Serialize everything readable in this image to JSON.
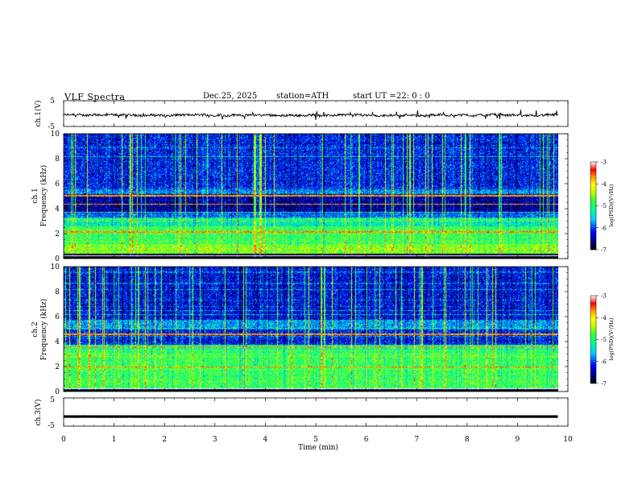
{
  "header": {
    "title": "VLF Spectra",
    "date": "Dec.25, 2025",
    "station": "station=ATH",
    "start_label": "start UT =",
    "start_time": "22: 0 : 0"
  },
  "chart_data": [
    {
      "type": "line",
      "panel": "ch1-waveform",
      "ylabel": "ch.1(V)",
      "ylim": [
        -5,
        5
      ],
      "y_ticks": [
        "5",
        "-5"
      ],
      "xlim": [
        0,
        10
      ],
      "data_extent_min": [
        0,
        9.8
      ],
      "baseline_v": -0.6,
      "description_values": {
        "typical_range_v": [
          -1.3,
          0.5
        ],
        "spike_min_v": -2.2
      }
    },
    {
      "type": "heatmap",
      "panel": "ch1-spectrogram",
      "ylabel": "ch.1\nFrequency (kHz)",
      "ylim_khz": [
        0,
        10
      ],
      "y_ticks": [
        "0",
        "2",
        "4",
        "6",
        "8",
        "10"
      ],
      "xlim_min": [
        0,
        10
      ],
      "data_extent_min": [
        0,
        9.8
      ],
      "colorbar": {
        "label": "log(PSD)(V²/Hz)",
        "range": [
          -7,
          -3
        ],
        "ticks": [
          "-3",
          "-4",
          "-5",
          "-6",
          "-7"
        ]
      },
      "typical_log_psd_by_band_khz": [
        {
          "band": [
            0.0,
            0.4
          ],
          "log_psd": -7
        },
        {
          "band": [
            0.4,
            1.2
          ],
          "log_psd": -4.6
        },
        {
          "band": [
            1.2,
            2.6
          ],
          "log_psd": -4.9
        },
        {
          "band": [
            2.6,
            3.3
          ],
          "log_psd": -5.3
        },
        {
          "band": [
            3.3,
            3.8
          ],
          "log_psd": -5.9
        },
        {
          "band": [
            3.8,
            5.2
          ],
          "log_psd": -6.5
        },
        {
          "band": [
            5.2,
            5.6
          ],
          "log_psd": -5.8
        },
        {
          "band": [
            5.6,
            10.0
          ],
          "log_psd": -6.2
        }
      ],
      "tones_khz": [
        2.15,
        4.4,
        5.05
      ]
    },
    {
      "type": "heatmap",
      "panel": "ch2-spectrogram",
      "ylabel": "ch.2\nFrequency (kHz)",
      "ylim_khz": [
        0,
        10
      ],
      "y_ticks": [
        "0",
        "2",
        "4",
        "6",
        "8",
        "10"
      ],
      "xlim_min": [
        0,
        10
      ],
      "data_extent_min": [
        0,
        9.8
      ],
      "colorbar": {
        "label": "log(PSD)(V²/Hz)",
        "range": [
          -7,
          -3
        ],
        "ticks": [
          "-3",
          "-4",
          "-5",
          "-6",
          "-7"
        ]
      },
      "typical_log_psd_by_band_khz": [
        {
          "band": [
            0.0,
            0.2
          ],
          "log_psd": -7
        },
        {
          "band": [
            0.2,
            1.2
          ],
          "log_psd": -4.9
        },
        {
          "band": [
            1.2,
            3.0
          ],
          "log_psd": -4.9
        },
        {
          "band": [
            3.0,
            3.8
          ],
          "log_psd": -5.1
        },
        {
          "band": [
            3.8,
            5.0
          ],
          "log_psd": -6.2
        },
        {
          "band": [
            5.0,
            5.8
          ],
          "log_psd": -5.7
        },
        {
          "band": [
            5.8,
            10.0
          ],
          "log_psd": -6.3
        }
      ],
      "tones_khz": [
        2.0,
        3.55,
        4.6
      ]
    },
    {
      "type": "line",
      "panel": "ch3-waveform",
      "ylabel": "ch.3(V)",
      "ylim": [
        -5,
        5
      ],
      "y_ticks": [
        "5",
        "-5"
      ],
      "xlim": [
        0,
        10
      ],
      "data_extent_min": [
        0,
        9.8
      ],
      "baseline_v": -1.6,
      "xlabel": "Time (min)",
      "x_ticks": [
        "0",
        "1",
        "2",
        "3",
        "4",
        "5",
        "6",
        "7",
        "8",
        "9",
        "10"
      ]
    }
  ],
  "colors": {
    "frame": "#000000",
    "colormap": [
      "#000000",
      "#000060",
      "#0000b4",
      "#0050ff",
      "#00c8ff",
      "#00ff96",
      "#32ff32",
      "#b4ff00",
      "#ffff00",
      "#ff9600",
      "#ff0000",
      "#ffc8c8",
      "#ffffff"
    ]
  }
}
